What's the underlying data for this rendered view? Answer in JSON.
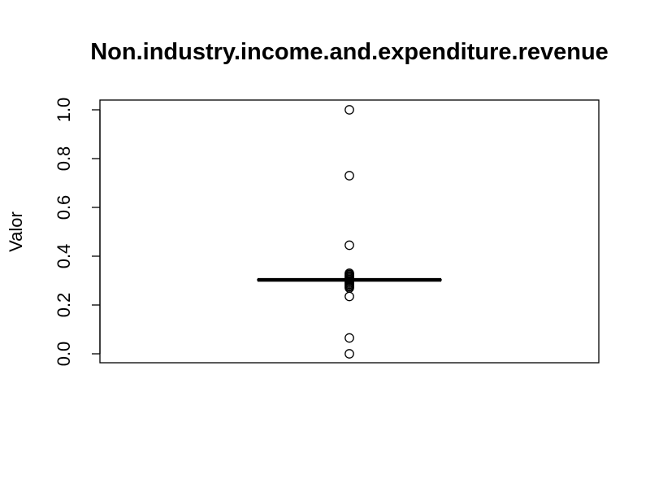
{
  "chart_data": {
    "type": "boxplot",
    "title": "Non.industry.income.and.expenditure.revenue",
    "xlabel": "",
    "ylabel": "Valor",
    "ylim": [
      -0.04,
      1.04
    ],
    "yticks": [
      0.0,
      0.2,
      0.4,
      0.6,
      0.8,
      1.0
    ],
    "ytick_labels": [
      "0.0",
      "0.2",
      "0.4",
      "0.6",
      "0.8",
      "1.0"
    ],
    "grid": false,
    "median": 0.303,
    "box": {
      "q1": 0.301,
      "q3": 0.305
    },
    "whiskers": [
      0.295,
      0.31
    ],
    "outliers": [
      1.0,
      0.73,
      0.445,
      0.33,
      0.325,
      0.32,
      0.315,
      0.31,
      0.305,
      0.3,
      0.295,
      0.29,
      0.285,
      0.28,
      0.275,
      0.27,
      0.235,
      0.065,
      0.0
    ],
    "colors": {
      "stroke": "#000000",
      "background": "#ffffff"
    }
  }
}
